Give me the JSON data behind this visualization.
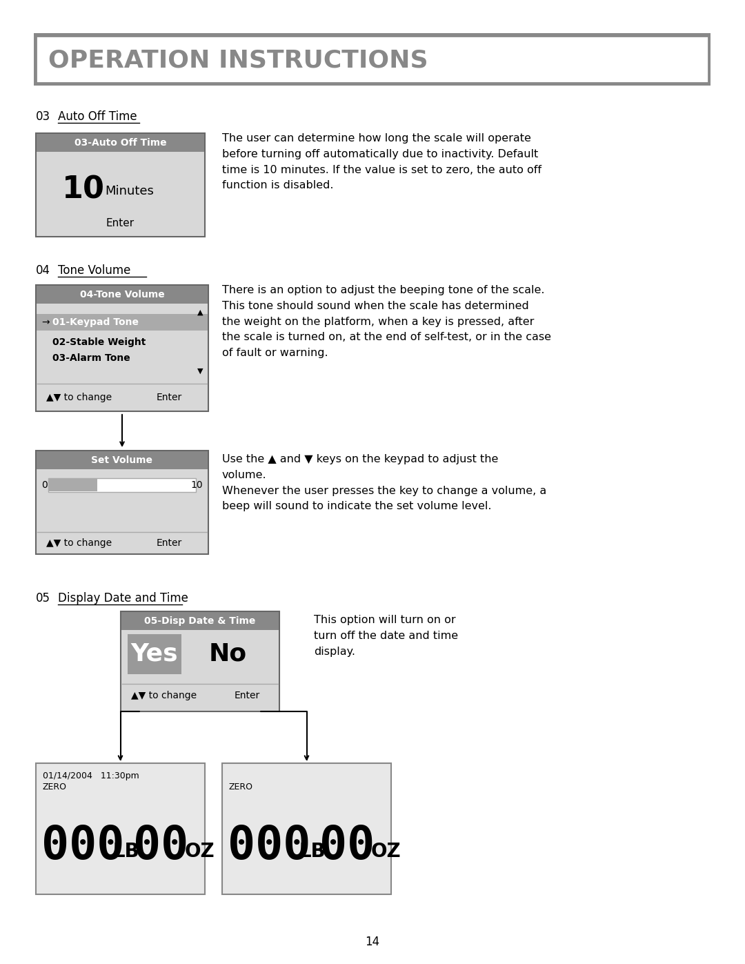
{
  "title": "OPERATION INSTRUCTIONS",
  "page_number": "14",
  "bg_color": "#ffffff",
  "section_03": {
    "number": "03",
    "label": "Auto Off Time",
    "box_header": "03-Auto Off Time",
    "box_value": "10",
    "box_unit": "Minutes",
    "box_footer": "Enter",
    "description": "The user can determine how long the scale will operate\nbefore turning off automatically due to inactivity. Default\ntime is 10 minutes. If the value is set to zero, the auto off\nfunction is disabled."
  },
  "section_04": {
    "number": "04",
    "label": "Tone Volume",
    "box1_header": "04-Tone Volume",
    "box1_items": [
      "01-Keypad Tone",
      "02-Stable Weight",
      "03-Alarm Tone"
    ],
    "box2_header": "Set Volume",
    "description": "There is an option to adjust the beeping tone of the scale.\nThis tone should sound when the scale has determined\nthe weight on the platform, when a key is pressed, after\nthe scale is turned on, at the end of self-test, or in the case\nof fault or warning.",
    "desc2": "Use the ▲ and ▼ keys on the keypad to adjust the\nvolume.\nWhenever the user presses the key to change a volume, a\nbeep will sound to indicate the set volume level."
  },
  "section_05": {
    "number": "05",
    "label": "Display Date and Time",
    "box_header": "05-Disp Date & Time",
    "box_yes": "Yes",
    "box_no": "No",
    "description": "This option will turn on or\nturn off the date and time\ndisplay.",
    "left_screen_date": "01/14/2004   11:30pm",
    "left_screen_zero": "ZERO",
    "right_screen_zero": "ZERO"
  }
}
